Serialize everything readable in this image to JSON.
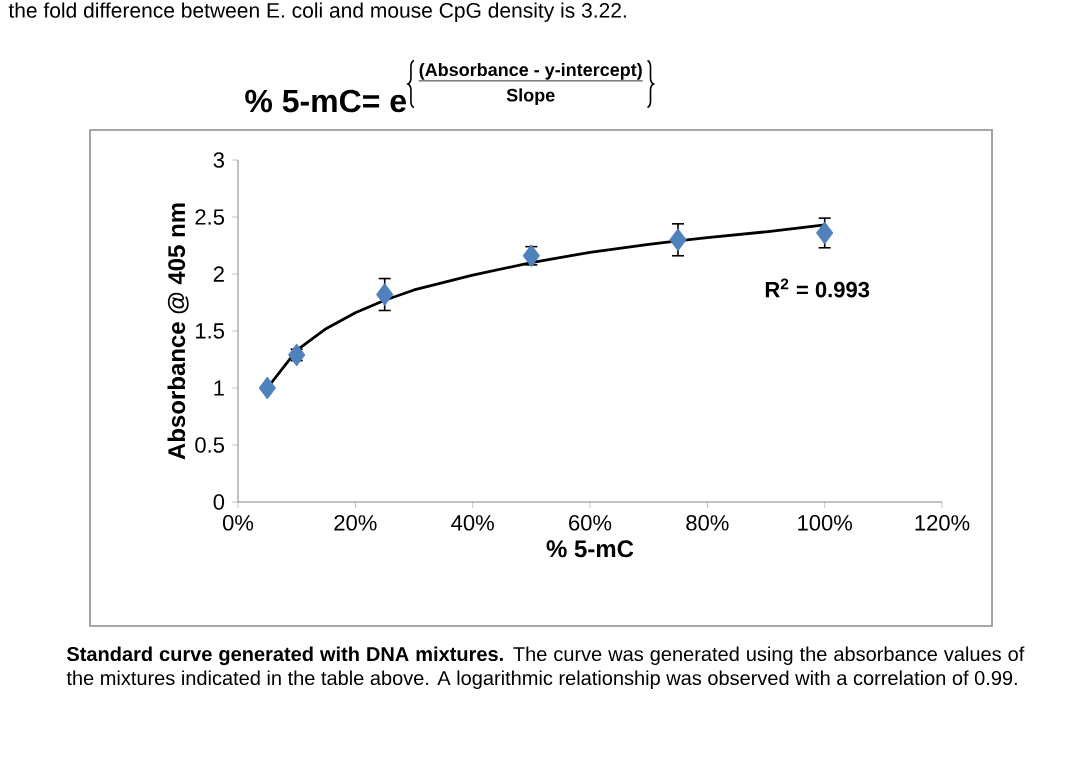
{
  "chart_data": {
    "type": "scatter",
    "title": "% 5-mC= e",
    "xlabel": "% 5-mC",
    "ylabel": "Absorbance @ 405 nm",
    "annotations": [
      "the fold difference between E. coli and mouse CpG density is 3.22.",
      "(Absorbance -  y-intercept)",
      "Slope",
      "R$^{2}$ = 0.993",
      "**Standard curve generated with DNA mixtures.**  The curve was generated using the absorbance values of the mixtures indicated in the table above. A logarithmic relationship was observed with a correlation of 0.99."
    ],
    "series": [
      {
        "color": "#4f81bd",
        "marker": "diamond",
        "x": [
          5,
          10,
          25,
          50,
          75,
          100
        ],
        "values": [
          1.0,
          1.29,
          1.82,
          2.16,
          2.3,
          2.36
        ],
        "errors": [
          null,
          0.05,
          0.14,
          0.08,
          0.14,
          0.13
        ]
      },
      {
        "type": "line",
        "color": "#000000",
        "marker": "none",
        "x": [
          5,
          10,
          15,
          20,
          25,
          30,
          40,
          50,
          60,
          70,
          75,
          80,
          90,
          100
        ],
        "values": [
          1.0,
          1.33,
          1.52,
          1.66,
          1.77,
          1.86,
          1.99,
          2.1,
          2.19,
          2.26,
          2.29,
          2.32,
          2.37,
          2.43
        ]
      }
    ],
    "xlim": [
      0,
      120
    ],
    "xticks": [
      {
        "value": 0,
        "label": "0%"
      },
      {
        "value": 20,
        "label": "20%"
      },
      {
        "value": 40,
        "label": "40%"
      },
      {
        "value": 60,
        "label": "60%"
      },
      {
        "value": 80,
        "label": "80%"
      },
      {
        "value": 100,
        "label": "100%"
      },
      {
        "value": 120,
        "label": "120%"
      }
    ],
    "ylim": [
      0,
      3
    ],
    "yticks": [
      0,
      0.5,
      1,
      1.5,
      2,
      2.5,
      3
    ],
    "grid": false
  }
}
